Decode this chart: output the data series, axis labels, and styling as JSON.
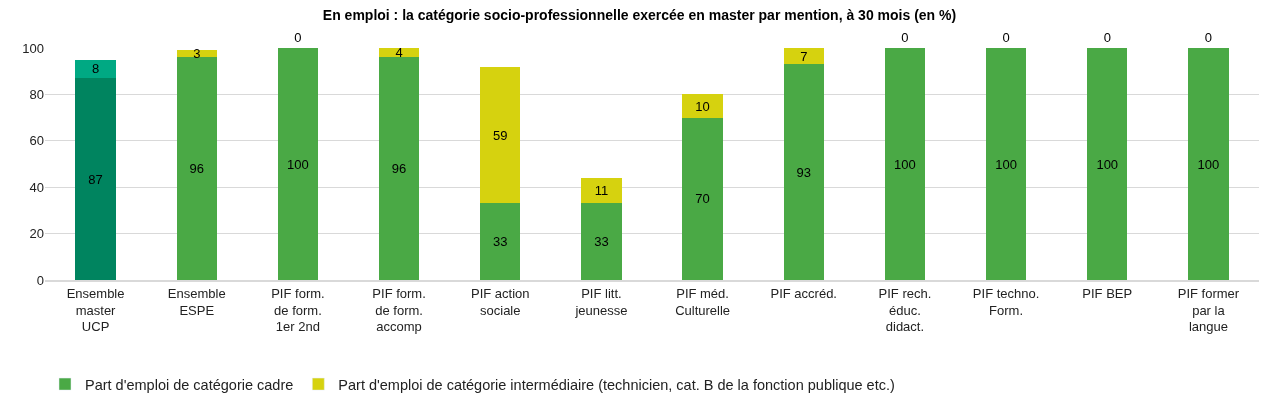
{
  "chart_data": {
    "type": "bar",
    "title": "En emploi : la catégorie socio-professionnelle exercée en master par mention, à 30 mois (en %)",
    "categories": [
      "Ensemble\nmaster\nUCP",
      "Ensemble\nESPE",
      "PIF form.\nde form.\n1er 2nd",
      "PIF form.\nde form.\naccomp",
      "PIF action\nsociale",
      "PIF litt.\njeunesse",
      "PIF méd.\nCulturelle",
      "PIF accréd.",
      "PIF rech.\néduc.\ndidact.",
      "PIF techno.\nForm.",
      "PIF BEP",
      "PIF former\npar la\nlangue"
    ],
    "stacked": true,
    "series": [
      {
        "name": "Part d'emploi de catégorie cadre",
        "color": "#4aa945",
        "colors": [
          "#00845f",
          "#4aa945",
          "#4aa945",
          "#4aa945",
          "#4aa945",
          "#4aa945",
          "#4aa945",
          "#4aa945",
          "#4aa945",
          "#4aa945",
          "#4aa945",
          "#4aa945"
        ],
        "values": [
          87,
          96,
          100,
          96,
          33,
          33,
          70,
          93,
          100,
          100,
          100,
          100
        ]
      },
      {
        "name": "Part d'emploi de catégorie intermédiaire (technicien, cat. B de la fonction publique etc.)",
        "color": "#d6d20f",
        "colors": [
          "#00a983",
          "#d6d20f",
          "#d6d20f",
          "#d6d20f",
          "#d6d20f",
          "#d6d20f",
          "#d6d20f",
          "#d6d20f",
          "#d6d20f",
          "#d6d20f",
          "#d6d20f",
          "#d6d20f"
        ],
        "values": [
          8,
          3,
          0,
          4,
          59,
          11,
          10,
          7,
          0,
          0,
          0,
          0
        ]
      }
    ],
    "ylim": [
      0,
      100
    ],
    "yticks": [
      0,
      20,
      40,
      60,
      80,
      100
    ],
    "grid": "y",
    "legend": "bottom",
    "data_labels": true
  }
}
